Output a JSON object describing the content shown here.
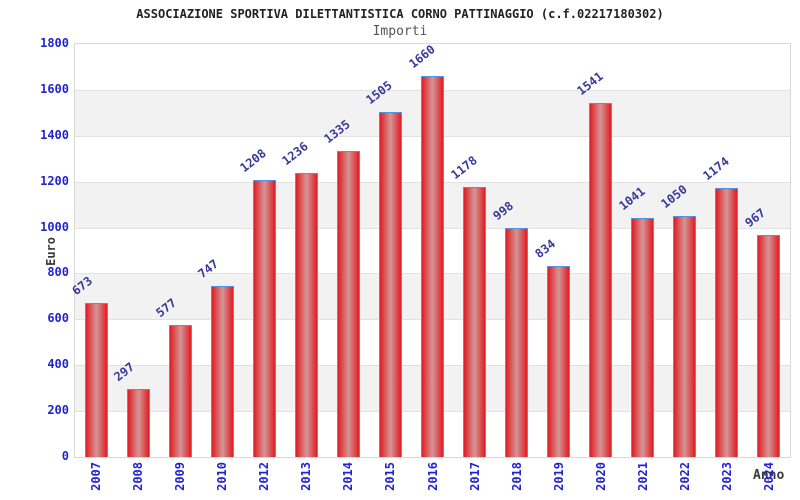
{
  "chart_data": {
    "type": "bar",
    "title": "ASSOCIAZIONE SPORTIVA DILETTANTISTICA CORNO PATTINAGGIO (c.f.02217180302)",
    "subtitle": "Importi",
    "xlabel": "Anno",
    "ylabel": "Euro",
    "categories": [
      "2007",
      "2008",
      "2009",
      "2010",
      "2012",
      "2013",
      "2014",
      "2015",
      "2016",
      "2017",
      "2018",
      "2019",
      "2020",
      "2021",
      "2022",
      "2023",
      "2024"
    ],
    "values": [
      673,
      297,
      577,
      747,
      1208,
      1236,
      1335,
      1505,
      1660,
      1178,
      998,
      834,
      1541,
      1041,
      1050,
      1174,
      967
    ],
    "ylim": [
      0,
      1800
    ],
    "ytick_step": 200,
    "yticks": [
      0,
      200,
      400,
      600,
      800,
      1000,
      1200,
      1400,
      1600,
      1800
    ],
    "grid": true,
    "legend": "none",
    "value_labels_shown": true,
    "colors": {
      "title": "#222222",
      "subtitle": "#555555",
      "axis_title": "#3a3a3a",
      "y_tick_label": "#2323d0",
      "x_tick_label": "#2323d0",
      "value_label": "#39399b",
      "bar_border": "#4f93e8",
      "bar_fill_edge": "#e01f24",
      "bar_fill_mid": "#d59597",
      "band_fill": "#f2f2f2",
      "gridline": "#e2e2e2",
      "plot_border": "#d9d9d9",
      "plot_background": "#ffffff"
    }
  }
}
